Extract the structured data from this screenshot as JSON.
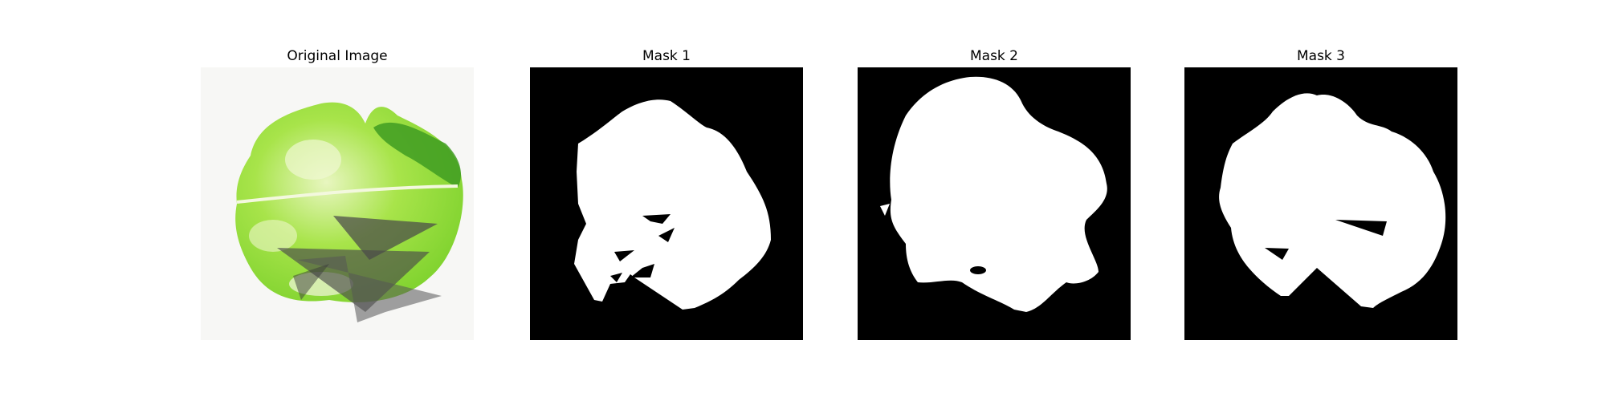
{
  "panels": [
    {
      "title": "Original Image",
      "kind": "photo"
    },
    {
      "title": "Mask 1",
      "kind": "mask"
    },
    {
      "title": "Mask 2",
      "kind": "mask"
    },
    {
      "title": "Mask 3",
      "kind": "mask"
    }
  ],
  "colors": {
    "page_background": "#ffffff",
    "mask_background": "#000000",
    "mask_foreground": "#ffffff",
    "leaf_green": "#9be03a",
    "leaf_light": "#e6f4b8",
    "leaf_dark": "#3e9a1e",
    "occluder_gray": "#555555"
  }
}
